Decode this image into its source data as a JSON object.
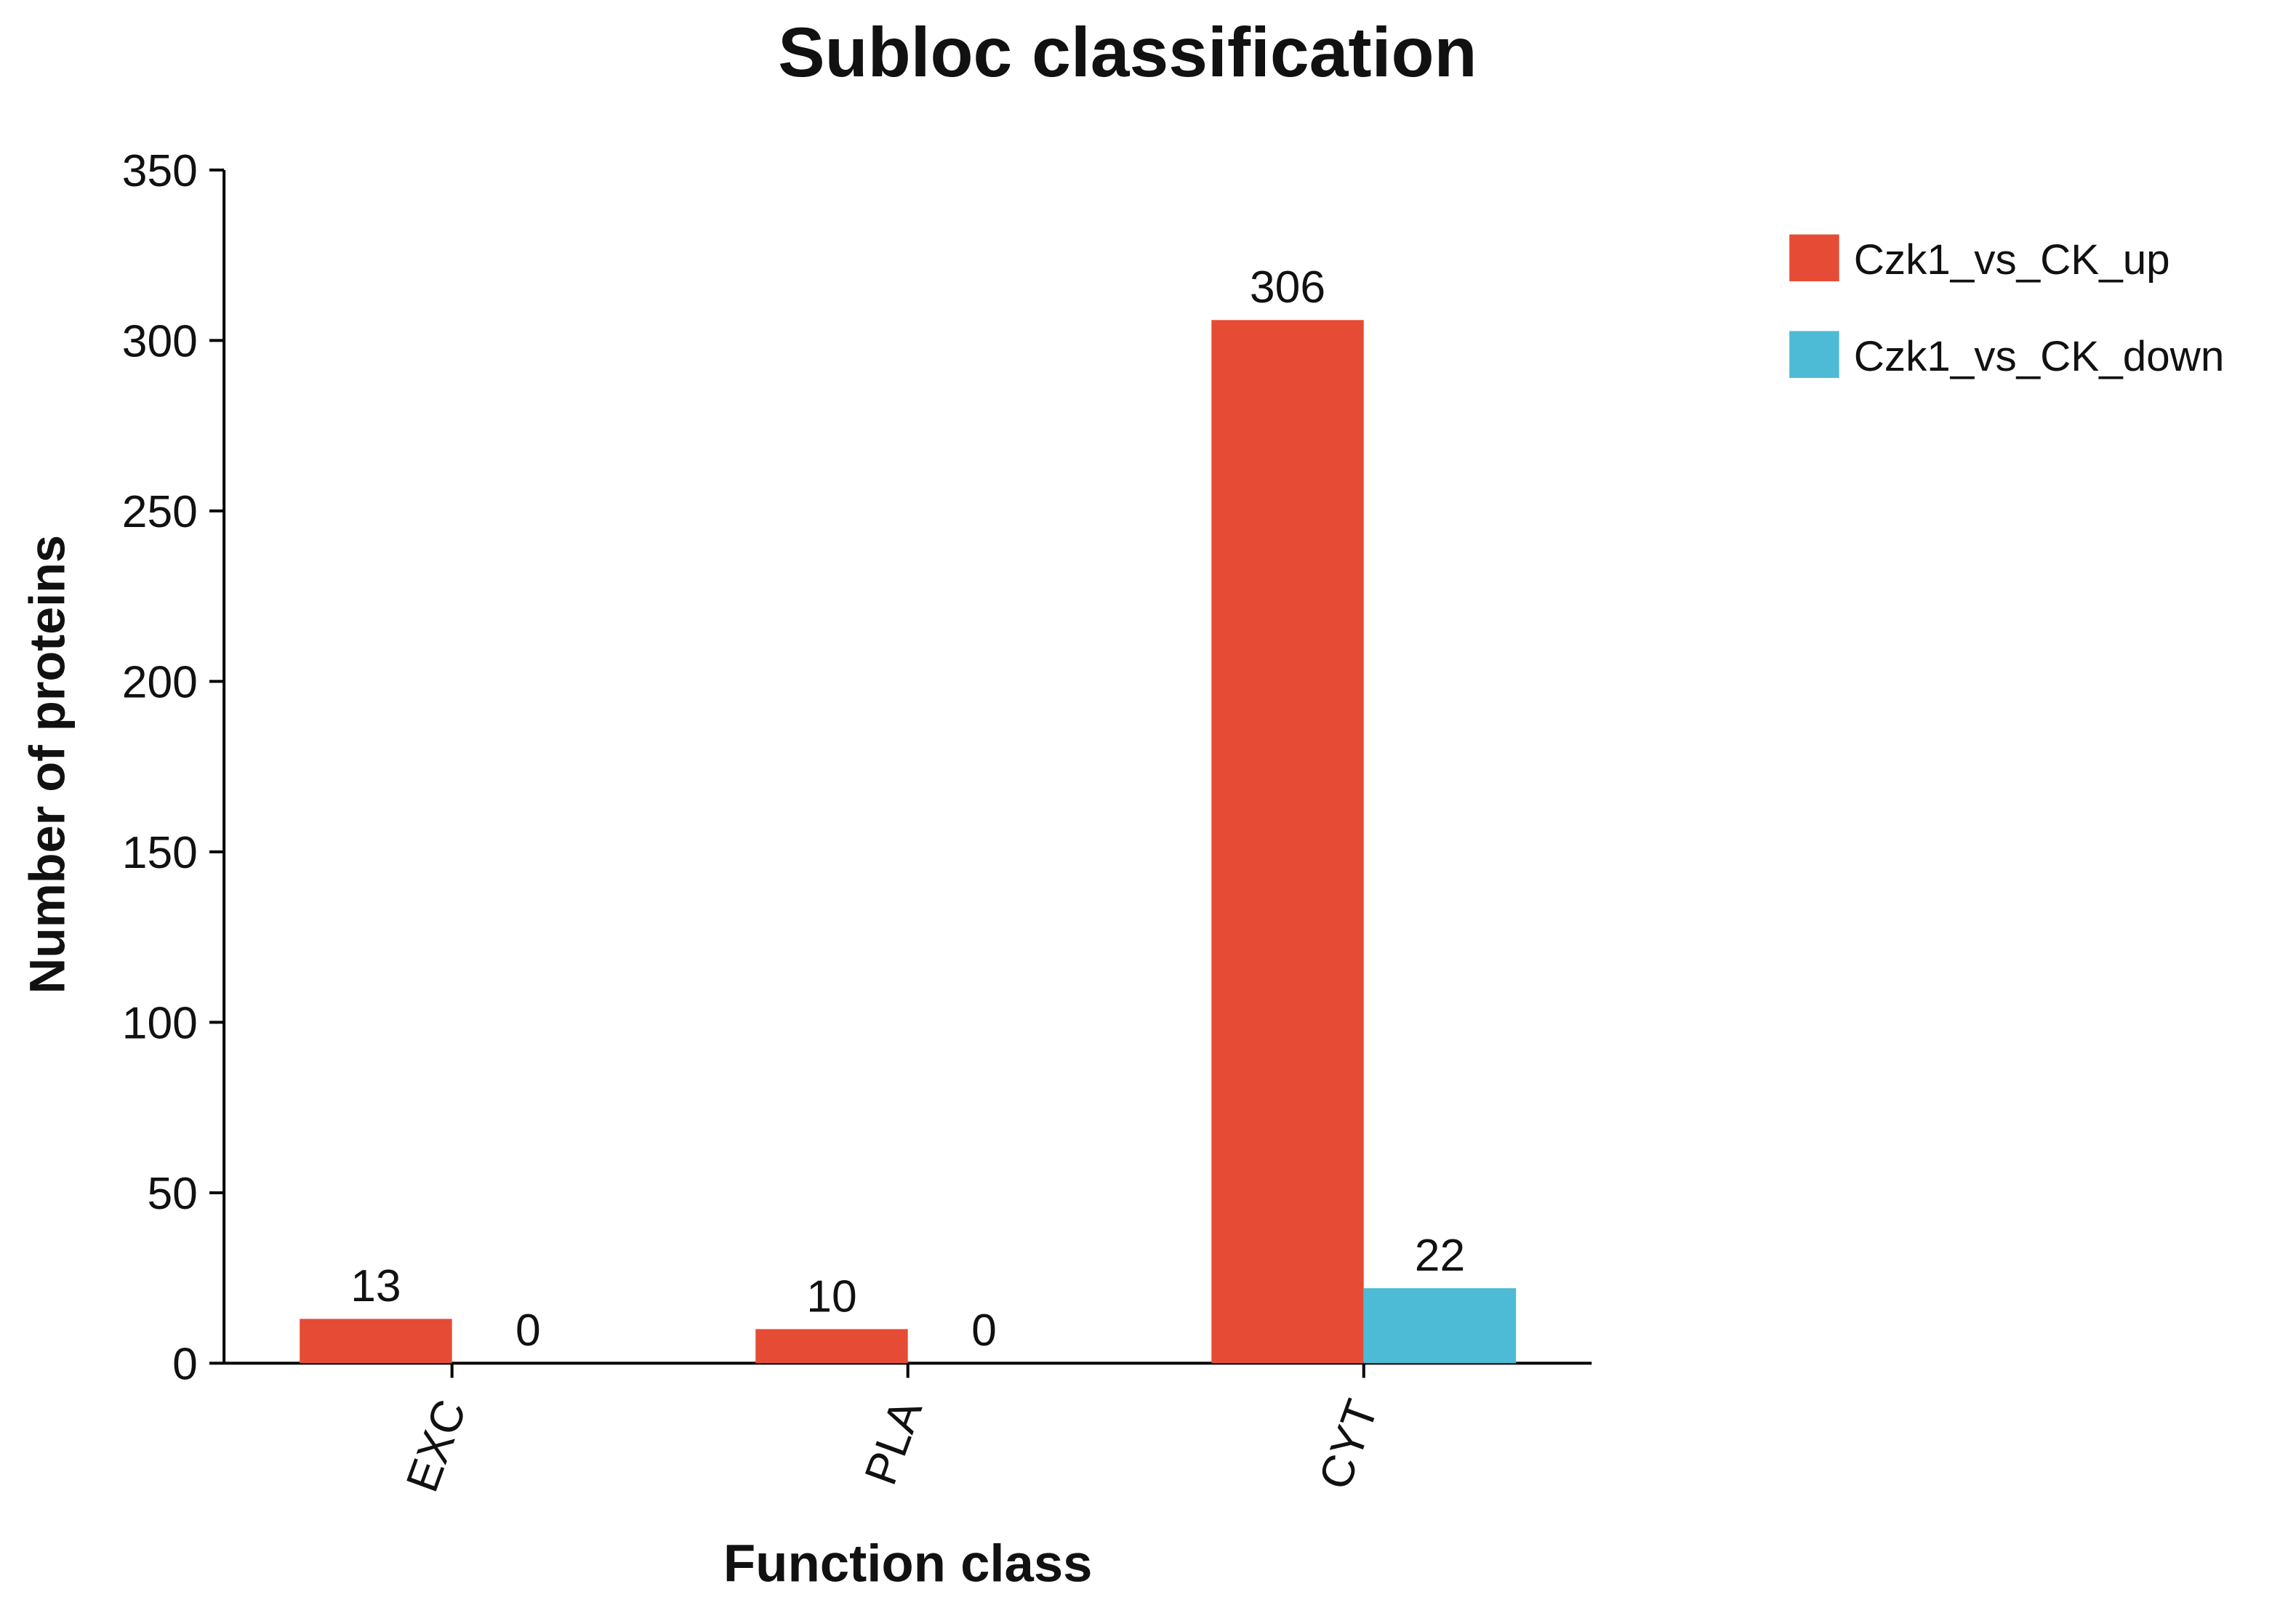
{
  "chart_data": {
    "type": "bar",
    "title": "Subloc classification",
    "x_label": "Function class",
    "y_label": "Number of proteins",
    "categories": [
      "EXC",
      "PLA",
      "CYT"
    ],
    "series": [
      {
        "name": "Czk1_vs_CK_up",
        "color": "#E64B35",
        "values": [
          13,
          10,
          306
        ]
      },
      {
        "name": "Czk1_vs_CK_down",
        "color": "#4DBBD5",
        "values": [
          0,
          0,
          22
        ]
      }
    ],
    "ylim": [
      0,
      350
    ],
    "yticks": [
      0,
      50,
      100,
      150,
      200,
      250,
      300,
      350
    ],
    "legend": "right"
  }
}
